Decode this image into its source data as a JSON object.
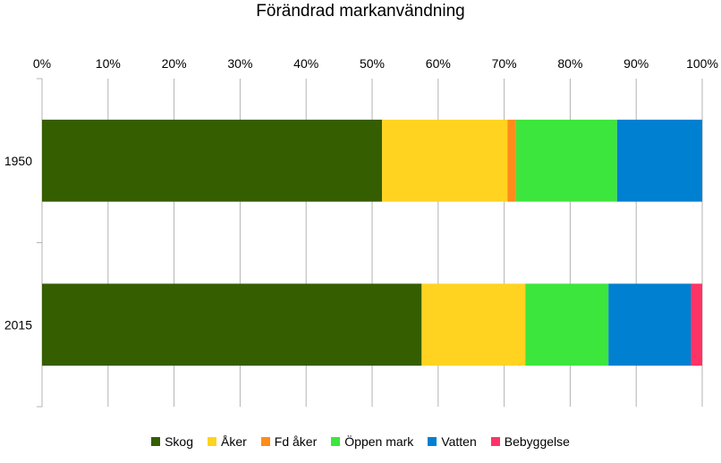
{
  "chart_data": {
    "type": "bar",
    "orientation": "horizontal",
    "stacked": "percent",
    "title": "Förändrad markanvändning",
    "categories": [
      "1950",
      "2015"
    ],
    "x_ticks": [
      "0%",
      "10%",
      "20%",
      "30%",
      "40%",
      "50%",
      "60%",
      "70%",
      "80%",
      "90%",
      "100%"
    ],
    "xlim": [
      0,
      100
    ],
    "x_axis_position": "top",
    "grid": true,
    "legend_position": "bottom",
    "series": [
      {
        "name": "Skog",
        "color": "#355e00",
        "values": [
          51.5,
          57.5
        ]
      },
      {
        "name": "Åker",
        "color": "#ffd320",
        "values": [
          19.0,
          15.7
        ]
      },
      {
        "name": "Fd åker",
        "color": "#ff8b1a",
        "values": [
          1.3,
          0.0
        ]
      },
      {
        "name": "Öppen mark",
        "color": "#3de63d",
        "values": [
          15.3,
          12.6
        ]
      },
      {
        "name": "Vatten",
        "color": "#0080d0",
        "values": [
          12.9,
          12.5
        ]
      },
      {
        "name": "Bebyggelse",
        "color": "#ff3366",
        "values": [
          0.0,
          1.7
        ]
      }
    ]
  }
}
